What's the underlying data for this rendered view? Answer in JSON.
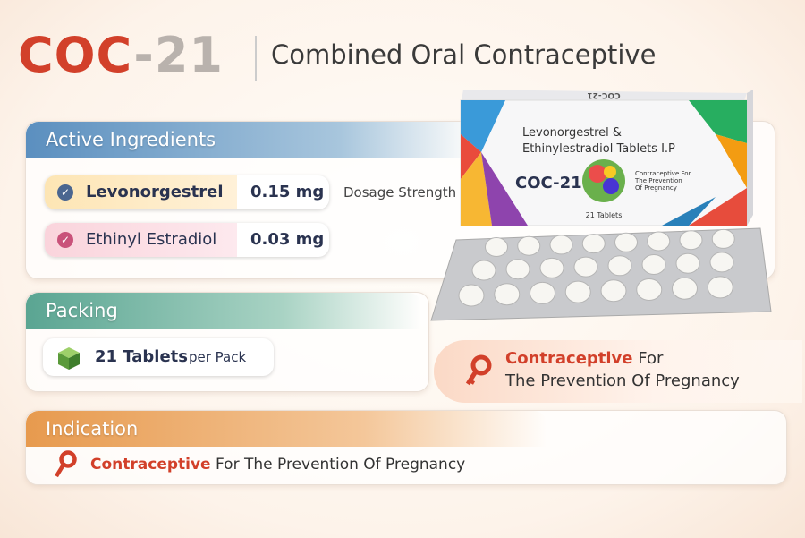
{
  "header": {
    "brand_main": "COC",
    "brand_suffix": "-21",
    "subtitle": "Combined Oral Contraceptive"
  },
  "active_ingredients": {
    "title": "Active Ingredients",
    "items": [
      {
        "name": "Levonorgestrel",
        "dose": "0.15 mg"
      },
      {
        "name": "Ethinyl Estradiol",
        "dose": "0.03 mg"
      }
    ],
    "note": "Dosage Strength"
  },
  "packing": {
    "title": "Packing",
    "count": "21 Tablets",
    "unit": "per Pack"
  },
  "callout": {
    "highlight": "Contraceptive",
    "text": "For",
    "line2": "The Prevention Of Pregnancy"
  },
  "indication": {
    "title": "Indication",
    "highlight": "Contraceptive",
    "text": "For The Prevention Of Pregnancy"
  },
  "box": {
    "top_label": "COC-21",
    "line1": "Levonorgestrel &",
    "line2": "Ethinylestradiol Tablets I.P",
    "brand": "COC-21",
    "side_lines": [
      "Contraceptive For",
      "The Prevention",
      "Of Pregnancy"
    ],
    "count": "21 Tablets"
  }
}
